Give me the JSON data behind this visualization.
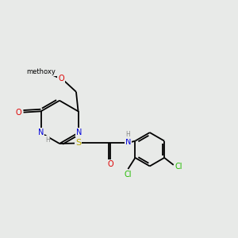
{
  "bg_color": "#e8eae8",
  "atom_colors": {
    "C": "#000000",
    "N": "#0000dd",
    "O": "#dd0000",
    "S": "#bbaa00",
    "Cl": "#22bb00",
    "H": "#888888"
  },
  "font_size": 7.0,
  "bond_lw": 1.3,
  "figsize": [
    3.0,
    3.0
  ],
  "dpi": 100
}
